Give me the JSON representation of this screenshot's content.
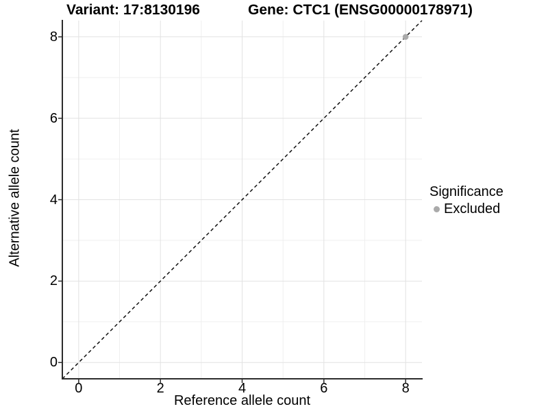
{
  "header": {
    "variant_title": "Variant: 17:8130196",
    "gene_title": "Gene: CTC1 (ENSG00000178971)"
  },
  "chart_data": {
    "type": "scatter",
    "xlabel": "Reference allele count",
    "ylabel": "Alternative allele count",
    "xlim": [
      -0.4,
      8.4
    ],
    "ylim": [
      -0.4,
      8.4
    ],
    "x_ticks": [
      0,
      2,
      4,
      6,
      8
    ],
    "y_ticks": [
      0,
      2,
      4,
      6,
      8
    ],
    "x_minor_ticks": [
      1,
      3,
      5,
      7
    ],
    "y_minor_ticks": [
      1,
      3,
      5,
      7
    ],
    "grid": "on",
    "identity_line": {
      "style": "dashed",
      "slope": 1,
      "intercept": 0
    },
    "points": [
      {
        "x": 8,
        "y": 8,
        "series": "Excluded"
      }
    ],
    "legend": {
      "title": "Significance",
      "position": "right",
      "entries": [
        {
          "label": "Excluded",
          "color": "#aaaaaa"
        }
      ]
    }
  },
  "colors": {
    "background": "#ffffff",
    "grid_major": "#e2e2e2",
    "grid_minor": "#efefef",
    "axis_line": "#2b2b2b",
    "tick_mark": "#2b2b2b",
    "identity_line": "#111111",
    "point_fill": "#aaaaaa",
    "text": "#000000"
  }
}
